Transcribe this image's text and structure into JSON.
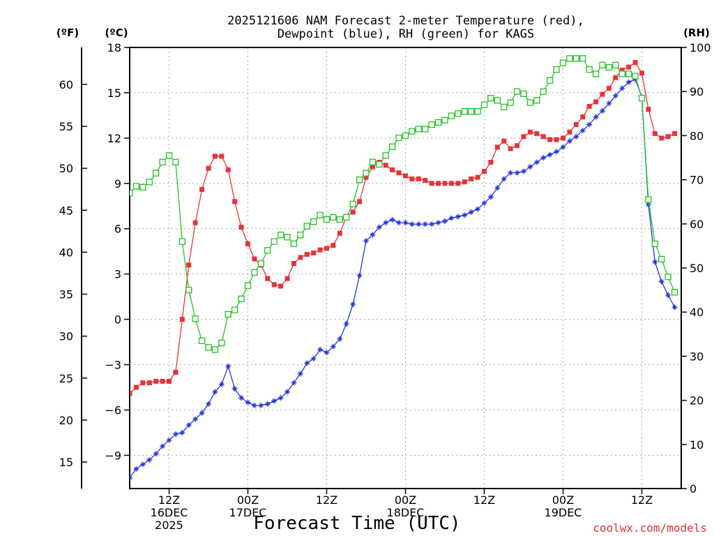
{
  "title": {
    "line1": "2025121606 NAM Forecast 2-meter Temperature (red),",
    "line2": "Dewpoint (blue), RH (green) for KAGS"
  },
  "units": {
    "fahrenheit": "(ºF)",
    "celsius": "(ºC)",
    "rh": "(RH)"
  },
  "xlabel": "Forecast Time (UTC)",
  "credit": "coolwx.com/models",
  "colors": {
    "temperature": "#e8323a",
    "dewpoint": "#2233dd",
    "rh": "#22c322",
    "grid": "#aaaaaa"
  },
  "chart_data": {
    "type": "line",
    "x_unit": "forecast hour from 2025-12-16 06Z",
    "x_range": [
      0,
      84
    ],
    "x_ticks": [
      {
        "hour": 6,
        "labels": [
          "12Z",
          "16DEC",
          "2025"
        ]
      },
      {
        "hour": 18,
        "labels": [
          "00Z",
          "17DEC"
        ]
      },
      {
        "hour": 30,
        "labels": [
          "12Z"
        ]
      },
      {
        "hour": 42,
        "labels": [
          "00Z",
          "18DEC"
        ]
      },
      {
        "hour": 54,
        "labels": [
          "12Z"
        ]
      },
      {
        "hour": 66,
        "labels": [
          "00Z",
          "19DEC"
        ]
      },
      {
        "hour": 78,
        "labels": [
          "12Z"
        ]
      }
    ],
    "y_celsius": {
      "range": [
        -11.2,
        18
      ],
      "ticks": [
        18,
        15,
        12,
        9,
        6,
        3,
        0,
        -3,
        -6,
        -9
      ],
      "tick_labels": [
        "18",
        "15",
        "12",
        "9",
        "6",
        "3",
        "0",
        "−3",
        "−6",
        "−9"
      ]
    },
    "y_fahrenheit": {
      "ticks": [
        60,
        55,
        50,
        45,
        40,
        35,
        30,
        25,
        20,
        15
      ]
    },
    "y_rh": {
      "range": [
        0,
        100
      ],
      "ticks": [
        100,
        90,
        80,
        70,
        60,
        50,
        40,
        30,
        20,
        10,
        0
      ]
    },
    "grid": true,
    "series": [
      {
        "name": "Temperature",
        "axis": "celsius",
        "marker": "filled-square",
        "points": [
          [
            0,
            -4.9
          ],
          [
            1,
            -4.5
          ],
          [
            2,
            -4.2
          ],
          [
            3,
            -4.2
          ],
          [
            4,
            -4.1
          ],
          [
            5,
            -4.1
          ],
          [
            6,
            -4.1
          ],
          [
            7,
            -3.5
          ],
          [
            8,
            0
          ],
          [
            9,
            3.6
          ],
          [
            10,
            6.4
          ],
          [
            11,
            8.6
          ],
          [
            12,
            10
          ],
          [
            13,
            10.8
          ],
          [
            14,
            10.8
          ],
          [
            15,
            9.9
          ],
          [
            16,
            7.8
          ],
          [
            17,
            6.1
          ],
          [
            18,
            5
          ],
          [
            19,
            4
          ],
          [
            20,
            3.6
          ],
          [
            21,
            2.7
          ],
          [
            22,
            2.3
          ],
          [
            23,
            2.2
          ],
          [
            24,
            2.7
          ],
          [
            25,
            3.7
          ],
          [
            26,
            4.1
          ],
          [
            27,
            4.3
          ],
          [
            28,
            4.4
          ],
          [
            29,
            4.6
          ],
          [
            30,
            4.7
          ],
          [
            31,
            4.9
          ],
          [
            32,
            5.7
          ],
          [
            33,
            6.8
          ],
          [
            34,
            7.1
          ],
          [
            35,
            7.8
          ],
          [
            36,
            9.4
          ],
          [
            37,
            10.1
          ],
          [
            38,
            10.4
          ],
          [
            39,
            10.2
          ],
          [
            40,
            9.9
          ],
          [
            41,
            9.7
          ],
          [
            42,
            9.5
          ],
          [
            43,
            9.3
          ],
          [
            44,
            9.3
          ],
          [
            45,
            9.2
          ],
          [
            46,
            9
          ],
          [
            47,
            9
          ],
          [
            48,
            9
          ],
          [
            49,
            9
          ],
          [
            50,
            9
          ],
          [
            51,
            9.1
          ],
          [
            52,
            9.3
          ],
          [
            53,
            9.4
          ],
          [
            54,
            9.8
          ],
          [
            55,
            10.4
          ],
          [
            56,
            11.4
          ],
          [
            57,
            11.8
          ],
          [
            58,
            11.3
          ],
          [
            59,
            11.5
          ],
          [
            60,
            12.1
          ],
          [
            61,
            12.4
          ],
          [
            62,
            12.3
          ],
          [
            63,
            12.1
          ],
          [
            64,
            11.9
          ],
          [
            65,
            11.9
          ],
          [
            66,
            12
          ],
          [
            67,
            12.4
          ],
          [
            68,
            12.9
          ],
          [
            69,
            13.4
          ],
          [
            70,
            14.1
          ],
          [
            71,
            14.4
          ],
          [
            72,
            14.9
          ],
          [
            73,
            15.3
          ],
          [
            74,
            16
          ],
          [
            75,
            16.5
          ],
          [
            76,
            16.7
          ],
          [
            77,
            17
          ],
          [
            78,
            16.3
          ],
          [
            79,
            13.9
          ],
          [
            80,
            12.3
          ],
          [
            81,
            12
          ],
          [
            82,
            12.1
          ],
          [
            83,
            12.3
          ]
        ]
      },
      {
        "name": "Dewpoint",
        "axis": "celsius",
        "marker": "plus",
        "points": [
          [
            0,
            -10.5
          ],
          [
            1,
            -9.9
          ],
          [
            2,
            -9.6
          ],
          [
            3,
            -9.3
          ],
          [
            4,
            -8.9
          ],
          [
            5,
            -8.4
          ],
          [
            6,
            -8
          ],
          [
            7,
            -7.6
          ],
          [
            8,
            -7.5
          ],
          [
            9,
            -7
          ],
          [
            10,
            -6.6
          ],
          [
            11,
            -6.2
          ],
          [
            12,
            -5.6
          ],
          [
            13,
            -4.8
          ],
          [
            14,
            -4.3
          ],
          [
            15,
            -3.1
          ],
          [
            16,
            -4.6
          ],
          [
            17,
            -5.2
          ],
          [
            18,
            -5.5
          ],
          [
            19,
            -5.7
          ],
          [
            20,
            -5.7
          ],
          [
            21,
            -5.6
          ],
          [
            22,
            -5.4
          ],
          [
            23,
            -5.2
          ],
          [
            24,
            -4.8
          ],
          [
            25,
            -4.2
          ],
          [
            26,
            -3.6
          ],
          [
            27,
            -2.9
          ],
          [
            28,
            -2.6
          ],
          [
            29,
            -2
          ],
          [
            30,
            -2.2
          ],
          [
            31,
            -1.8
          ],
          [
            32,
            -1.3
          ],
          [
            33,
            -0.3
          ],
          [
            34,
            1
          ],
          [
            35,
            2.9
          ],
          [
            36,
            5.2
          ],
          [
            37,
            5.6
          ],
          [
            38,
            6.1
          ],
          [
            39,
            6.4
          ],
          [
            40,
            6.6
          ],
          [
            41,
            6.4
          ],
          [
            42,
            6.4
          ],
          [
            43,
            6.3
          ],
          [
            44,
            6.3
          ],
          [
            45,
            6.3
          ],
          [
            46,
            6.3
          ],
          [
            47,
            6.4
          ],
          [
            48,
            6.5
          ],
          [
            49,
            6.7
          ],
          [
            50,
            6.8
          ],
          [
            51,
            6.9
          ],
          [
            52,
            7.1
          ],
          [
            53,
            7.3
          ],
          [
            54,
            7.7
          ],
          [
            55,
            8.1
          ],
          [
            56,
            8.7
          ],
          [
            57,
            9.3
          ],
          [
            58,
            9.7
          ],
          [
            59,
            9.7
          ],
          [
            60,
            9.8
          ],
          [
            61,
            10.1
          ],
          [
            62,
            10.4
          ],
          [
            63,
            10.7
          ],
          [
            64,
            10.9
          ],
          [
            65,
            11.1
          ],
          [
            66,
            11.4
          ],
          [
            67,
            11.8
          ],
          [
            68,
            12.1
          ],
          [
            69,
            12.5
          ],
          [
            70,
            12.9
          ],
          [
            71,
            13.4
          ],
          [
            72,
            13.8
          ],
          [
            73,
            14.3
          ],
          [
            74,
            14.8
          ],
          [
            75,
            15.3
          ],
          [
            76,
            15.7
          ],
          [
            77,
            15.9
          ],
          [
            78,
            14.7
          ],
          [
            79,
            7.6
          ],
          [
            80,
            3.8
          ],
          [
            81,
            2.5
          ],
          [
            82,
            1.6
          ],
          [
            83,
            0.8
          ]
        ]
      },
      {
        "name": "RH",
        "axis": "rh",
        "marker": "open-square",
        "points": [
          [
            0,
            67
          ],
          [
            1,
            68.5
          ],
          [
            2,
            68.3
          ],
          [
            3,
            69.5
          ],
          [
            4,
            71.5
          ],
          [
            5,
            74
          ],
          [
            6,
            75.5
          ],
          [
            7,
            74
          ],
          [
            8,
            56
          ],
          [
            9,
            45
          ],
          [
            10,
            38.5
          ],
          [
            11,
            33.5
          ],
          [
            12,
            32
          ],
          [
            13,
            31.5
          ],
          [
            14,
            33
          ],
          [
            15,
            39.5
          ],
          [
            16,
            40.5
          ],
          [
            17,
            43
          ],
          [
            18,
            46
          ],
          [
            19,
            49
          ],
          [
            20,
            51
          ],
          [
            21,
            54
          ],
          [
            22,
            56
          ],
          [
            23,
            57.5
          ],
          [
            24,
            57
          ],
          [
            25,
            55.5
          ],
          [
            26,
            57.5
          ],
          [
            27,
            59.5
          ],
          [
            28,
            60.5
          ],
          [
            29,
            62
          ],
          [
            30,
            61
          ],
          [
            31,
            61.5
          ],
          [
            32,
            61
          ],
          [
            33,
            61.5
          ],
          [
            34,
            64.5
          ],
          [
            35,
            70
          ],
          [
            36,
            71.5
          ],
          [
            37,
            74
          ],
          [
            38,
            73.5
          ],
          [
            39,
            75.5
          ],
          [
            40,
            77.5
          ],
          [
            41,
            79.5
          ],
          [
            42,
            80
          ],
          [
            43,
            81
          ],
          [
            44,
            81.5
          ],
          [
            45,
            81.5
          ],
          [
            46,
            82.5
          ],
          [
            47,
            83
          ],
          [
            48,
            83.5
          ],
          [
            49,
            84.5
          ],
          [
            50,
            85
          ],
          [
            51,
            85.5
          ],
          [
            52,
            85.5
          ],
          [
            53,
            85.5
          ],
          [
            54,
            87
          ],
          [
            55,
            88.5
          ],
          [
            56,
            88
          ],
          [
            57,
            86.5
          ],
          [
            58,
            87.5
          ],
          [
            59,
            90
          ],
          [
            60,
            89.5
          ],
          [
            61,
            87.5
          ],
          [
            62,
            88
          ],
          [
            63,
            90
          ],
          [
            64,
            92.5
          ],
          [
            65,
            95
          ],
          [
            66,
            96.5
          ],
          [
            67,
            97.5
          ],
          [
            68,
            97.5
          ],
          [
            69,
            97.5
          ],
          [
            70,
            95
          ],
          [
            71,
            94
          ],
          [
            72,
            96
          ],
          [
            73,
            95.5
          ],
          [
            74,
            96
          ],
          [
            75,
            94
          ],
          [
            76,
            94
          ],
          [
            77,
            93.5
          ],
          [
            78,
            88.5
          ],
          [
            79,
            65.5
          ],
          [
            80,
            55.5
          ],
          [
            81,
            52
          ],
          [
            82,
            48
          ],
          [
            83,
            44.5
          ]
        ]
      }
    ]
  }
}
